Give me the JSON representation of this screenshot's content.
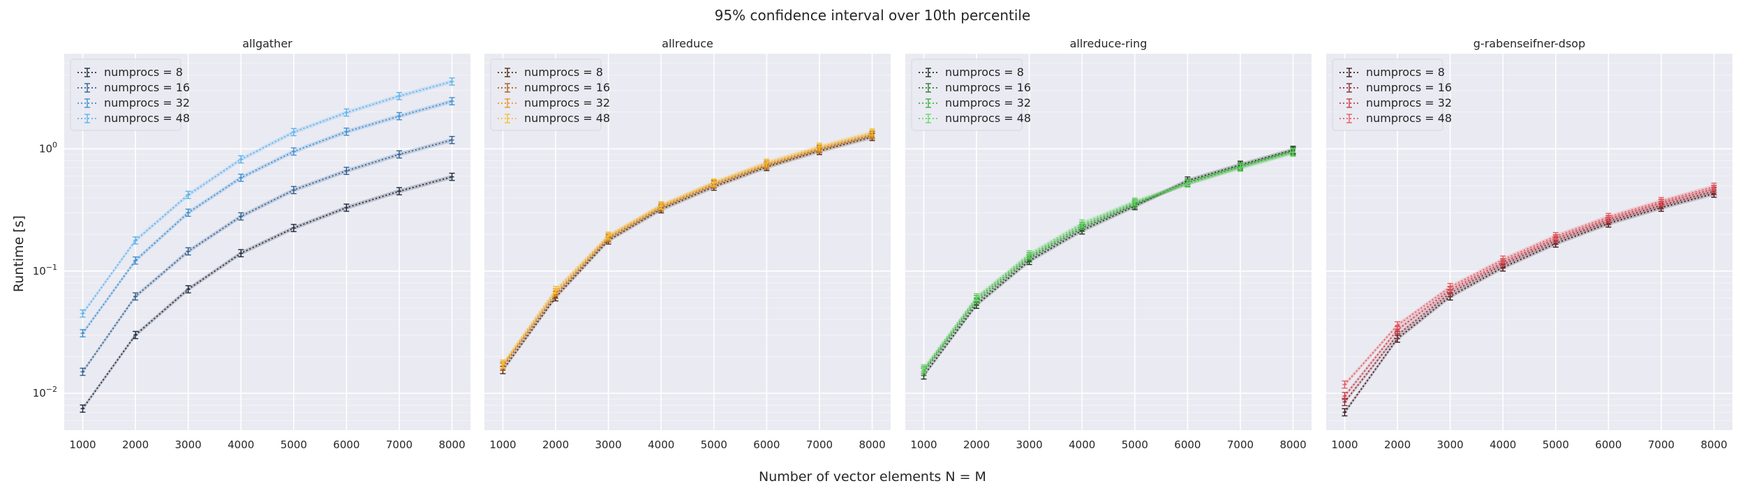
{
  "chart_data": {
    "title": "95% confidence interval over 10th percentile",
    "xlabel": "Number of vector elements N = M",
    "ylabel": "Runtime [s]",
    "type": "line",
    "yscale": "log",
    "ylim": [
      0.005,
      6.0
    ],
    "xlim": [
      650,
      8350
    ],
    "x_ticks": [
      1000,
      2000,
      3000,
      4000,
      5000,
      6000,
      7000,
      8000
    ],
    "y_ticks": [
      {
        "value": 0.01,
        "label": "10",
        "exp": "−2"
      },
      {
        "value": 0.1,
        "label": "10",
        "exp": "−1"
      },
      {
        "value": 1,
        "label": "10",
        "exp": "0"
      }
    ],
    "grid": true,
    "legend_placement": "top-left",
    "x": [
      1000,
      2000,
      3000,
      4000,
      5000,
      6000,
      7000,
      8000
    ],
    "panels": [
      {
        "title": "allgather",
        "series": [
          {
            "name": "numprocs = 8",
            "color": "#1c2a3a",
            "values": [
              0.0075,
              0.03,
              0.071,
              0.14,
              0.225,
              0.33,
              0.45,
              0.59
            ]
          },
          {
            "name": "numprocs = 16",
            "color": "#2f5f8f",
            "values": [
              0.015,
              0.062,
              0.145,
              0.28,
              0.46,
              0.66,
              0.9,
              1.18
            ]
          },
          {
            "name": "numprocs = 32",
            "color": "#3c8fd0",
            "values": [
              0.031,
              0.122,
              0.3,
              0.58,
              0.95,
              1.38,
              1.85,
              2.45
            ]
          },
          {
            "name": "numprocs = 48",
            "color": "#5ab3ee",
            "values": [
              0.045,
              0.178,
              0.42,
              0.82,
              1.37,
              1.98,
              2.7,
              3.55
            ]
          }
        ]
      },
      {
        "title": "allreduce",
        "series": [
          {
            "name": "numprocs = 8",
            "color": "#4a2a10",
            "values": [
              0.0155,
              0.061,
              0.178,
              0.32,
              0.49,
              0.71,
              0.96,
              1.25
            ]
          },
          {
            "name": "numprocs = 16",
            "color": "#a85a18",
            "values": [
              0.0165,
              0.064,
              0.185,
              0.33,
              0.51,
              0.73,
              0.99,
              1.29
            ]
          },
          {
            "name": "numprocs = 32",
            "color": "#e8961e",
            "values": [
              0.017,
              0.067,
              0.19,
              0.34,
              0.52,
              0.75,
              1.01,
              1.32
            ]
          },
          {
            "name": "numprocs = 48",
            "color": "#f4c030",
            "values": [
              0.0175,
              0.07,
              0.195,
              0.345,
              0.53,
              0.77,
              1.04,
              1.36
            ]
          }
        ]
      },
      {
        "title": "allreduce-ring",
        "series": [
          {
            "name": "numprocs = 8",
            "color": "#1c2e1c",
            "values": [
              0.014,
              0.053,
              0.121,
              0.215,
              0.34,
              0.55,
              0.74,
              0.98
            ]
          },
          {
            "name": "numprocs = 16",
            "color": "#2e7a2e",
            "values": [
              0.015,
              0.056,
              0.127,
              0.225,
              0.35,
              0.53,
              0.72,
              0.96
            ]
          },
          {
            "name": "numprocs = 32",
            "color": "#3fae3f",
            "values": [
              0.0155,
              0.059,
              0.132,
              0.235,
              0.36,
              0.52,
              0.71,
              0.94
            ]
          },
          {
            "name": "numprocs = 48",
            "color": "#66d866",
            "values": [
              0.016,
              0.061,
              0.137,
              0.245,
              0.37,
              0.52,
              0.7,
              0.93
            ]
          }
        ]
      },
      {
        "title": "g-rabenseifner-dsop",
        "series": [
          {
            "name": "numprocs = 8",
            "color": "#3a1a1c",
            "values": [
              0.007,
              0.028,
              0.062,
              0.107,
              0.168,
              0.245,
              0.33,
              0.43
            ]
          },
          {
            "name": "numprocs = 16",
            "color": "#8a2a32",
            "values": [
              0.0085,
              0.03,
              0.066,
              0.113,
              0.177,
              0.256,
              0.345,
              0.45
            ]
          },
          {
            "name": "numprocs = 32",
            "color": "#c83a44",
            "values": [
              0.0095,
              0.033,
              0.07,
              0.118,
              0.185,
              0.266,
              0.36,
              0.47
            ]
          },
          {
            "name": "numprocs = 48",
            "color": "#ea5a5e",
            "values": [
              0.0118,
              0.036,
              0.074,
              0.124,
              0.193,
              0.277,
              0.373,
              0.49
            ]
          }
        ]
      }
    ]
  }
}
